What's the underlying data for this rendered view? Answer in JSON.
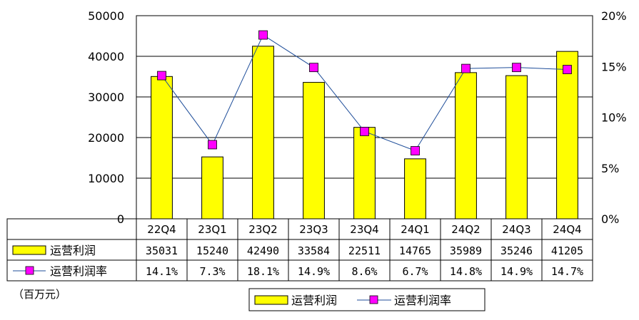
{
  "chart_data": {
    "type": "bar",
    "categories": [
      "22Q4",
      "23Q1",
      "23Q2",
      "23Q3",
      "23Q4",
      "24Q1",
      "24Q2",
      "24Q3",
      "24Q4"
    ],
    "series": [
      {
        "name": "运营利润",
        "kind": "bar",
        "axis": "left",
        "color": "#ffff00",
        "values": [
          35031,
          15240,
          42490,
          33584,
          22511,
          14765,
          35989,
          35246,
          41205
        ]
      },
      {
        "name": "运营利润率",
        "kind": "line",
        "axis": "right",
        "line_color": "#1f4e9a",
        "marker_color": "#ff00ff",
        "values": [
          14.1,
          7.3,
          18.1,
          14.9,
          8.6,
          6.7,
          14.8,
          14.9,
          14.7
        ]
      }
    ],
    "left_axis": {
      "range": [
        0,
        50000
      ],
      "ticks": [
        "0",
        "10000",
        "20000",
        "30000",
        "40000",
        "50000"
      ]
    },
    "right_axis": {
      "range": [
        0,
        20
      ],
      "ticks": [
        "0%",
        "5%",
        "10%",
        "15%",
        "20%"
      ]
    },
    "table": {
      "bar_row": [
        "35031",
        "15240",
        "42490",
        "33584",
        "22511",
        "14765",
        "35989",
        "35246",
        "41205"
      ],
      "rate_row": [
        "14.1%",
        "7.3%",
        "18.1%",
        "14.9%",
        "8.6%",
        "6.7%",
        "14.8%",
        "14.9%",
        "14.7%"
      ]
    },
    "unit_label": "（百万元）",
    "legend": {
      "position": "bottom",
      "items": [
        "运营利润",
        "运营利润率"
      ]
    },
    "grid": true
  }
}
